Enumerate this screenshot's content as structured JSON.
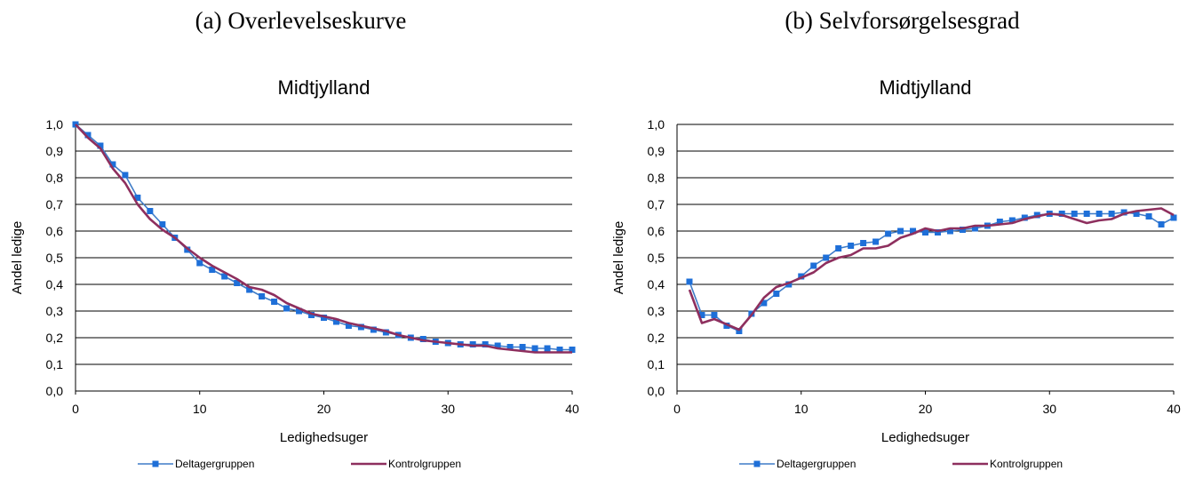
{
  "captions": {
    "a": "(a) Overlevelseskurve",
    "b": "(b) Selvforsørgelsesgrad"
  },
  "colors": {
    "deltager": "#3F7CC7",
    "deltager_marker": "#1E6FD8",
    "kontrol": "#8E2F5E",
    "grid": "#000000"
  },
  "chart_data": [
    {
      "type": "line",
      "title": "Midtjylland",
      "xlabel": "Ledighedsuger",
      "ylabel": "Andel ledige",
      "xlim": [
        0,
        40
      ],
      "ylim": [
        0,
        1
      ],
      "xticks": [
        "0",
        "10",
        "20",
        "30",
        "40"
      ],
      "yticks": [
        "0,0",
        "0,1",
        "0,2",
        "0,3",
        "0,4",
        "0,5",
        "0,6",
        "0,7",
        "0,8",
        "0,9",
        "1,0"
      ],
      "grid": "horizontal",
      "legend": "bottom",
      "series": [
        {
          "name": "Deltagergruppen",
          "marker": "square",
          "x": [
            0,
            1,
            2,
            3,
            4,
            5,
            6,
            7,
            8,
            9,
            10,
            11,
            12,
            13,
            14,
            15,
            16,
            17,
            18,
            19,
            20,
            21,
            22,
            23,
            24,
            25,
            26,
            27,
            28,
            29,
            30,
            31,
            32,
            33,
            34,
            35,
            36,
            37,
            38,
            39,
            40
          ],
          "y": [
            1.0,
            0.96,
            0.92,
            0.85,
            0.81,
            0.725,
            0.675,
            0.625,
            0.575,
            0.53,
            0.48,
            0.455,
            0.43,
            0.405,
            0.38,
            0.355,
            0.335,
            0.31,
            0.3,
            0.285,
            0.275,
            0.26,
            0.245,
            0.24,
            0.23,
            0.22,
            0.21,
            0.2,
            0.195,
            0.185,
            0.18,
            0.175,
            0.175,
            0.175,
            0.17,
            0.165,
            0.165,
            0.16,
            0.16,
            0.155,
            0.155
          ]
        },
        {
          "name": "Kontrolgruppen",
          "marker": "none",
          "x": [
            0,
            1,
            2,
            3,
            4,
            5,
            6,
            7,
            8,
            9,
            10,
            11,
            12,
            13,
            14,
            15,
            16,
            17,
            18,
            19,
            20,
            21,
            22,
            23,
            24,
            25,
            26,
            27,
            28,
            29,
            30,
            31,
            32,
            33,
            34,
            35,
            36,
            37,
            38,
            39,
            40
          ],
          "y": [
            1.0,
            0.95,
            0.91,
            0.835,
            0.78,
            0.7,
            0.645,
            0.605,
            0.575,
            0.535,
            0.5,
            0.47,
            0.445,
            0.42,
            0.39,
            0.38,
            0.36,
            0.33,
            0.31,
            0.29,
            0.28,
            0.27,
            0.255,
            0.245,
            0.235,
            0.225,
            0.21,
            0.2,
            0.19,
            0.185,
            0.18,
            0.175,
            0.17,
            0.17,
            0.16,
            0.155,
            0.15,
            0.145,
            0.145,
            0.145,
            0.145
          ]
        }
      ]
    },
    {
      "type": "line",
      "title": "Midtjylland",
      "xlabel": "Ledighedsuger",
      "ylabel": "Andel ledige",
      "xlim": [
        0,
        40
      ],
      "ylim": [
        0,
        1
      ],
      "xticks": [
        "0",
        "10",
        "20",
        "30",
        "40"
      ],
      "yticks": [
        "0,0",
        "0,1",
        "0,2",
        "0,3",
        "0,4",
        "0,5",
        "0,6",
        "0,7",
        "0,8",
        "0,9",
        "1,0"
      ],
      "grid": "horizontal",
      "legend": "bottom",
      "series": [
        {
          "name": "Deltagergruppen",
          "marker": "square",
          "x": [
            1,
            2,
            3,
            4,
            5,
            6,
            7,
            8,
            9,
            10,
            11,
            12,
            13,
            14,
            15,
            16,
            17,
            18,
            19,
            20,
            21,
            22,
            23,
            24,
            25,
            26,
            27,
            28,
            29,
            30,
            31,
            32,
            33,
            34,
            35,
            36,
            37,
            38,
            39,
            40
          ],
          "y": [
            0.41,
            0.285,
            0.285,
            0.245,
            0.225,
            0.29,
            0.33,
            0.365,
            0.4,
            0.43,
            0.47,
            0.5,
            0.535,
            0.545,
            0.555,
            0.56,
            0.59,
            0.6,
            0.6,
            0.595,
            0.595,
            0.6,
            0.605,
            0.61,
            0.62,
            0.635,
            0.64,
            0.65,
            0.66,
            0.665,
            0.665,
            0.665,
            0.665,
            0.665,
            0.665,
            0.67,
            0.665,
            0.655,
            0.625,
            0.65
          ]
        },
        {
          "name": "Kontrolgruppen",
          "marker": "none",
          "x": [
            1,
            2,
            3,
            4,
            5,
            6,
            7,
            8,
            9,
            10,
            11,
            12,
            13,
            14,
            15,
            16,
            17,
            18,
            19,
            20,
            21,
            22,
            23,
            24,
            25,
            26,
            27,
            28,
            29,
            30,
            31,
            32,
            33,
            34,
            35,
            36,
            37,
            38,
            39,
            40
          ],
          "y": [
            0.38,
            0.255,
            0.27,
            0.25,
            0.23,
            0.285,
            0.35,
            0.39,
            0.405,
            0.425,
            0.445,
            0.48,
            0.5,
            0.51,
            0.535,
            0.535,
            0.545,
            0.575,
            0.59,
            0.61,
            0.6,
            0.61,
            0.61,
            0.62,
            0.62,
            0.625,
            0.63,
            0.645,
            0.655,
            0.665,
            0.66,
            0.645,
            0.63,
            0.64,
            0.645,
            0.665,
            0.675,
            0.68,
            0.685,
            0.66
          ]
        }
      ]
    }
  ]
}
